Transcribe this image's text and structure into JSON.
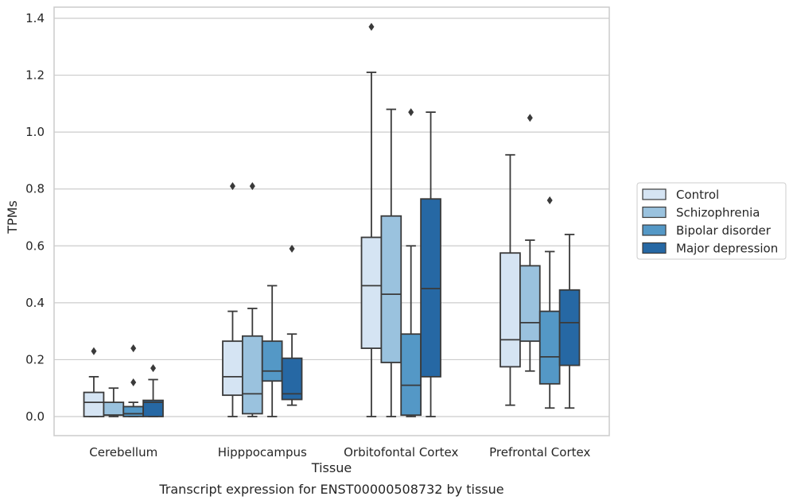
{
  "chart_data": {
    "type": "box",
    "title": "",
    "caption": "Transcript expression for ENST00000508732 by tissue",
    "xlabel": "Tissue",
    "ylabel": "TPMs",
    "ylim": [
      -0.065,
      1.44
    ],
    "yticks": [
      0.0,
      0.2,
      0.4,
      0.6,
      0.8,
      1.0,
      1.2,
      1.4
    ],
    "ytick_labels": [
      "0.0",
      "0.2",
      "0.4",
      "0.6",
      "0.8",
      "1.0",
      "1.2",
      "1.4"
    ],
    "grid": "horizontal",
    "legend_position": "right",
    "categories": [
      "Cerebellum",
      "Hipppocampus",
      "Orbitofontal Cortex",
      "Prefrontal Cortex"
    ],
    "series": [
      {
        "name": "Control",
        "color": "#d5e4f3",
        "boxes": [
          {
            "min": 0.0,
            "q1": 0.0,
            "median": 0.05,
            "q3": 0.085,
            "max": 0.14,
            "outliers": [
              0.23
            ]
          },
          {
            "min": 0.0,
            "q1": 0.075,
            "median": 0.14,
            "q3": 0.265,
            "max": 0.37,
            "outliers": [
              0.81
            ]
          },
          {
            "min": 0.0,
            "q1": 0.24,
            "median": 0.46,
            "q3": 0.63,
            "max": 1.21,
            "outliers": [
              1.37
            ]
          },
          {
            "min": 0.04,
            "q1": 0.175,
            "median": 0.27,
            "q3": 0.575,
            "max": 0.92,
            "outliers": []
          }
        ]
      },
      {
        "name": "Schizophrenia",
        "color": "#9ac2de",
        "boxes": [
          {
            "min": 0.0,
            "q1": 0.005,
            "median": 0.005,
            "q3": 0.05,
            "max": 0.1,
            "outliers": []
          },
          {
            "min": 0.0,
            "q1": 0.01,
            "median": 0.08,
            "q3": 0.283,
            "max": 0.38,
            "outliers": [
              0.81
            ]
          },
          {
            "min": 0.0,
            "q1": 0.19,
            "median": 0.43,
            "q3": 0.705,
            "max": 1.08,
            "outliers": []
          },
          {
            "min": 0.16,
            "q1": 0.265,
            "median": 0.33,
            "q3": 0.53,
            "max": 0.62,
            "outliers": [
              1.05
            ]
          }
        ]
      },
      {
        "name": "Bipolar disorder",
        "color": "#5498c6",
        "boxes": [
          {
            "min": 0.0,
            "q1": 0.0,
            "median": 0.01,
            "q3": 0.035,
            "max": 0.05,
            "outliers": [
              0.12,
              0.24
            ]
          },
          {
            "min": 0.0,
            "q1": 0.125,
            "median": 0.16,
            "q3": 0.265,
            "max": 0.46,
            "outliers": []
          },
          {
            "min": 0.0,
            "q1": 0.005,
            "median": 0.11,
            "q3": 0.29,
            "max": 0.6,
            "outliers": [
              1.07
            ]
          },
          {
            "min": 0.03,
            "q1": 0.115,
            "median": 0.21,
            "q3": 0.37,
            "max": 0.58,
            "outliers": [
              0.76
            ]
          }
        ]
      },
      {
        "name": "Major depression",
        "color": "#2668a4",
        "boxes": [
          {
            "min": 0.0,
            "q1": 0.0,
            "median": 0.05,
            "q3": 0.057,
            "max": 0.13,
            "outliers": [
              0.17
            ]
          },
          {
            "min": 0.04,
            "q1": 0.06,
            "median": 0.08,
            "q3": 0.205,
            "max": 0.29,
            "outliers": [
              0.59
            ]
          },
          {
            "min": 0.0,
            "q1": 0.14,
            "median": 0.45,
            "q3": 0.765,
            "max": 1.07,
            "outliers": []
          },
          {
            "min": 0.03,
            "q1": 0.18,
            "median": 0.33,
            "q3": 0.445,
            "max": 0.64,
            "outliers": []
          }
        ]
      }
    ]
  }
}
